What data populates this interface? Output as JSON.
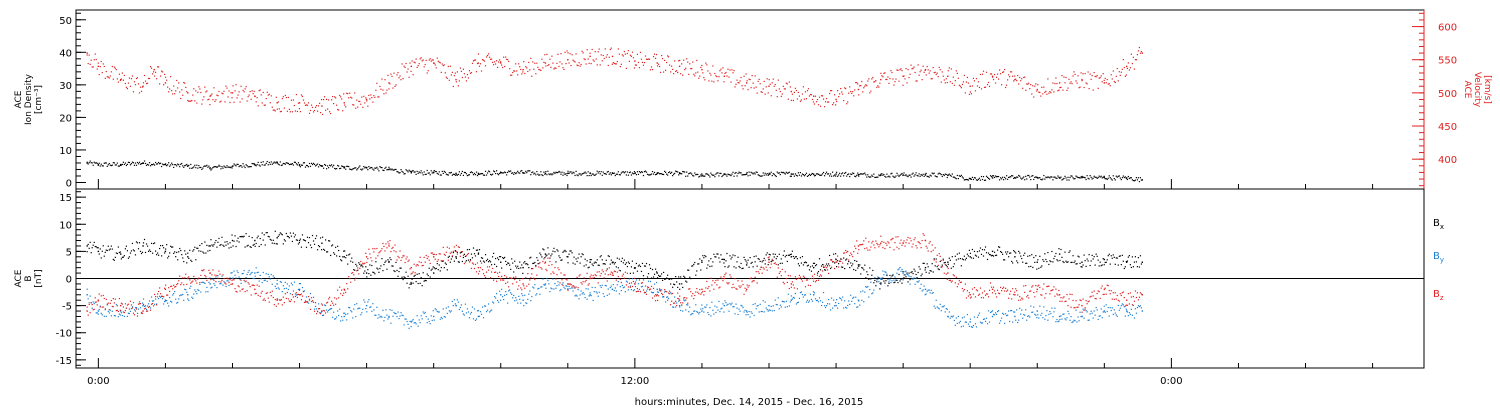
{
  "chart_data": [
    {
      "panel": "top",
      "type": "scatter",
      "left_axis": {
        "label_lines": [
          "ACE",
          "Ion Density",
          "[cm⁻³]"
        ],
        "range": [
          -2,
          53
        ],
        "ticks": [
          0,
          10,
          20,
          30,
          40,
          50
        ],
        "color": "#000000"
      },
      "right_axis": {
        "label_lines": [
          "ACE",
          "Velocity",
          "[km/s]"
        ],
        "range": [
          355,
          625
        ],
        "ticks": [
          400,
          450,
          500,
          550,
          600
        ],
        "color": "#e02020"
      },
      "series": [
        {
          "axis": "left",
          "color": "#000000",
          "points": [
            [
              -0.5,
              6
            ],
            [
              0,
              5.5
            ],
            [
              1,
              5.5
            ],
            [
              2,
              6
            ],
            [
              3,
              5.5
            ],
            [
              4,
              5
            ],
            [
              5,
              4.5
            ],
            [
              6,
              5
            ],
            [
              7,
              5.5
            ],
            [
              8,
              6
            ],
            [
              9,
              5.5
            ],
            [
              10,
              5
            ],
            [
              11,
              4.5
            ],
            [
              12,
              4.5
            ],
            [
              13,
              4
            ],
            [
              14,
              3
            ],
            [
              15,
              3
            ],
            [
              16,
              2.8
            ],
            [
              17,
              2.8
            ],
            [
              18,
              3
            ],
            [
              19,
              3
            ],
            [
              20,
              2.8
            ],
            [
              21,
              2.8
            ],
            [
              22,
              2.8
            ],
            [
              23,
              2.8
            ],
            [
              24,
              2.8
            ],
            [
              25,
              2.8
            ],
            [
              26,
              2.8
            ],
            [
              27,
              2
            ],
            [
              28,
              2.5
            ],
            [
              29,
              2.6
            ],
            [
              30,
              2.5
            ],
            [
              31,
              2.6
            ],
            [
              32,
              2.5
            ],
            [
              33,
              2.6
            ],
            [
              34,
              2.4
            ],
            [
              35,
              2.2
            ],
            [
              36,
              2.3
            ],
            [
              37,
              2.3
            ],
            [
              38,
              2.2
            ],
            [
              39,
              1.2
            ],
            [
              40,
              1.4
            ],
            [
              41,
              1.5
            ],
            [
              42,
              1.5
            ],
            [
              43,
              1.4
            ],
            [
              44,
              1.5
            ],
            [
              45,
              1.5
            ],
            [
              46,
              1.4
            ],
            [
              46.7,
              0.8
            ]
          ]
        },
        {
          "axis": "right",
          "color": "#e02020",
          "points": [
            [
              -0.5,
              560
            ],
            [
              0,
              540
            ],
            [
              1,
              520
            ],
            [
              2,
              510
            ],
            [
              2.5,
              535
            ],
            [
              3,
              515
            ],
            [
              4,
              500
            ],
            [
              5,
              495
            ],
            [
              6,
              500
            ],
            [
              7,
              495
            ],
            [
              8,
              485
            ],
            [
              9,
              485
            ],
            [
              10,
              480
            ],
            [
              11,
              485
            ],
            [
              12,
              490
            ],
            [
              13,
              515
            ],
            [
              14,
              540
            ],
            [
              15,
              545
            ],
            [
              16,
              520
            ],
            [
              17,
              545
            ],
            [
              18,
              545
            ],
            [
              19,
              535
            ],
            [
              20,
              545
            ],
            [
              21,
              550
            ],
            [
              22,
              555
            ],
            [
              23,
              555
            ],
            [
              24,
              548
            ],
            [
              25,
              545
            ],
            [
              26,
              540
            ],
            [
              27,
              535
            ],
            [
              28,
              525
            ],
            [
              29,
              515
            ],
            [
              30,
              510
            ],
            [
              31,
              502
            ],
            [
              32,
              495
            ],
            [
              33,
              490
            ],
            [
              34,
              505
            ],
            [
              35,
              520
            ],
            [
              36,
              525
            ],
            [
              37,
              535
            ],
            [
              38,
              525
            ],
            [
              39,
              510
            ],
            [
              40,
              525
            ],
            [
              41,
              520
            ],
            [
              42,
              505
            ],
            [
              43,
              515
            ],
            [
              44,
              520
            ],
            [
              45,
              515
            ],
            [
              46,
              540
            ],
            [
              46.7,
              560
            ]
          ]
        }
      ]
    },
    {
      "panel": "bottom",
      "type": "scatter",
      "left_axis": {
        "label_lines": [
          "ACE",
          "B",
          "[nT]"
        ],
        "range": [
          -16.5,
          16.5
        ],
        "ticks": [
          -15,
          -10,
          -5,
          0,
          5,
          10,
          15
        ],
        "color": "#000000"
      },
      "zero_line": true,
      "series": [
        {
          "name_main": "B",
          "name_sub": "x",
          "color": "#000000",
          "points": [
            [
              -0.5,
              6
            ],
            [
              0,
              5
            ],
            [
              1,
              4.5
            ],
            [
              2,
              6
            ],
            [
              3,
              5
            ],
            [
              4,
              4
            ],
            [
              5,
              6
            ],
            [
              6,
              7
            ],
            [
              7,
              7
            ],
            [
              8,
              7.5
            ],
            [
              9,
              7
            ],
            [
              10,
              6.5
            ],
            [
              11,
              4
            ],
            [
              12,
              1
            ],
            [
              13,
              3
            ],
            [
              14,
              -1
            ],
            [
              15,
              1
            ],
            [
              16,
              4
            ],
            [
              17,
              4.5
            ],
            [
              18,
              3
            ],
            [
              19,
              2
            ],
            [
              20,
              4.5
            ],
            [
              21,
              4
            ],
            [
              22,
              3
            ],
            [
              23,
              3
            ],
            [
              24,
              2
            ],
            [
              25,
              1
            ],
            [
              26,
              -1
            ],
            [
              27,
              3
            ],
            [
              28,
              3.5
            ],
            [
              29,
              2.5
            ],
            [
              30,
              3.5
            ],
            [
              31,
              4
            ],
            [
              32,
              2
            ],
            [
              33,
              3.5
            ],
            [
              34,
              2.5
            ],
            [
              35,
              -1
            ],
            [
              36,
              0
            ],
            [
              37,
              2
            ],
            [
              38,
              3
            ],
            [
              39,
              4
            ],
            [
              40,
              5
            ],
            [
              41,
              4
            ],
            [
              42,
              3
            ],
            [
              43,
              4.5
            ],
            [
              44,
              3
            ],
            [
              45,
              3.5
            ],
            [
              46,
              3
            ],
            [
              46.7,
              3
            ]
          ]
        },
        {
          "name_main": "B",
          "name_sub": "y",
          "color": "#1a7fd4",
          "points": [
            [
              -0.5,
              -3
            ],
            [
              0,
              -6
            ],
            [
              1,
              -6
            ],
            [
              2,
              -5
            ],
            [
              3,
              -4
            ],
            [
              4,
              -3
            ],
            [
              5,
              -1
            ],
            [
              6,
              0
            ],
            [
              7,
              1
            ],
            [
              8,
              -1
            ],
            [
              9,
              -2
            ],
            [
              10,
              -6
            ],
            [
              11,
              -7
            ],
            [
              12,
              -5
            ],
            [
              13,
              -7
            ],
            [
              14,
              -8
            ],
            [
              15,
              -7
            ],
            [
              16,
              -5
            ],
            [
              17,
              -7
            ],
            [
              18,
              -3
            ],
            [
              19,
              -4
            ],
            [
              20,
              -1
            ],
            [
              21,
              -2
            ],
            [
              22,
              -3
            ],
            [
              23,
              -2
            ],
            [
              24,
              -1
            ],
            [
              25,
              -2
            ],
            [
              26,
              -5
            ],
            [
              27,
              -6
            ],
            [
              28,
              -5
            ],
            [
              29,
              -6
            ],
            [
              30,
              -5
            ],
            [
              31,
              -4
            ],
            [
              32,
              -3
            ],
            [
              33,
              -5
            ],
            [
              34,
              -4
            ],
            [
              35,
              0
            ],
            [
              36,
              1
            ],
            [
              37,
              -2
            ],
            [
              38,
              -7
            ],
            [
              39,
              -8
            ],
            [
              40,
              -7
            ],
            [
              41,
              -7
            ],
            [
              42,
              -6
            ],
            [
              43,
              -7
            ],
            [
              44,
              -7
            ],
            [
              45,
              -6
            ],
            [
              46,
              -6
            ],
            [
              46.7,
              -6
            ]
          ]
        },
        {
          "name_main": "B",
          "name_sub": "z",
          "color": "#e02020",
          "points": [
            [
              -0.5,
              -6
            ],
            [
              0,
              -4
            ],
            [
              1,
              -5
            ],
            [
              2,
              -6
            ],
            [
              3,
              -2
            ],
            [
              4,
              0
            ],
            [
              5,
              1
            ],
            [
              6,
              -1
            ],
            [
              7,
              -2
            ],
            [
              8,
              -4
            ],
            [
              9,
              -3
            ],
            [
              10,
              -6
            ],
            [
              11,
              -2
            ],
            [
              12,
              4
            ],
            [
              13,
              6
            ],
            [
              14,
              2
            ],
            [
              15,
              4
            ],
            [
              16,
              5
            ],
            [
              17,
              2
            ],
            [
              18,
              0
            ],
            [
              19,
              -1
            ],
            [
              20,
              3
            ],
            [
              21,
              -1
            ],
            [
              22,
              0
            ],
            [
              23,
              1
            ],
            [
              24,
              -1
            ],
            [
              25,
              -3
            ],
            [
              26,
              -4
            ],
            [
              27,
              -2
            ],
            [
              28,
              0
            ],
            [
              29,
              -2
            ],
            [
              30,
              3
            ],
            [
              31,
              -1
            ],
            [
              32,
              0
            ],
            [
              33,
              3
            ],
            [
              34,
              6
            ],
            [
              35,
              6.5
            ],
            [
              36,
              6.5
            ],
            [
              37,
              7
            ],
            [
              38,
              1
            ],
            [
              39,
              -3
            ],
            [
              40,
              -2
            ],
            [
              41,
              -3
            ],
            [
              42,
              -2
            ],
            [
              43,
              -3
            ],
            [
              44,
              -5
            ],
            [
              45,
              -2
            ],
            [
              46,
              -4
            ],
            [
              46.7,
              -3
            ]
          ]
        }
      ]
    }
  ],
  "x_axis": {
    "range": [
      -1,
      59.3
    ],
    "ticks": [
      {
        "t": 0,
        "label": "0:00"
      },
      {
        "t": 24,
        "label": "12:00"
      },
      {
        "t": 48,
        "label": "0:00"
      }
    ],
    "title": "hours:minutes, Dec. 14, 2015 - Dec. 16, 2015"
  }
}
